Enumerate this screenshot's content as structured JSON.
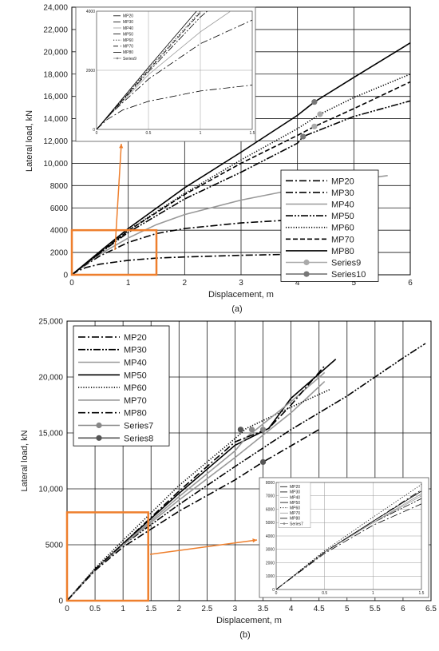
{
  "chart_data": [
    {
      "type": "line",
      "caption": "(a)",
      "xlabel": "Displacement, m",
      "ylabel": "Lateral load, kN",
      "xlim": [
        0,
        6
      ],
      "ylim": [
        0,
        24000
      ],
      "xticks": [
        "0",
        "1",
        "2",
        "3",
        "4",
        "5",
        "6"
      ],
      "yticks": [
        "0",
        "2000",
        "4000",
        "6000",
        "8000",
        "10,000",
        "12,000",
        "14,000",
        "16,000",
        "18,000",
        "20,000",
        "22,000",
        "24,000"
      ],
      "grid": true,
      "legend_position": "lower-right",
      "zoom_box": {
        "x": [
          0,
          1.5
        ],
        "y": [
          0,
          4000
        ]
      },
      "series": [
        {
          "name": "MP20",
          "color": "#000000",
          "dash": "dashdot",
          "points": [
            [
              0,
              0
            ],
            [
              0.1,
              330
            ],
            [
              0.25,
              650
            ],
            [
              0.5,
              950
            ],
            [
              1,
              1300
            ],
            [
              1.5,
              1500
            ],
            [
              2,
              1600
            ],
            [
              3,
              1750
            ],
            [
              4,
              1850
            ],
            [
              4.2,
              1880
            ]
          ]
        },
        {
          "name": "MP30",
          "color": "#000000",
          "dash": "dashdot",
          "points": [
            [
              0,
              0
            ],
            [
              0.1,
              400
            ],
            [
              0.25,
              900
            ],
            [
              0.5,
              1700
            ],
            [
              1,
              2900
            ],
            [
              1.5,
              3700
            ],
            [
              2,
              4150
            ],
            [
              3,
              4650
            ],
            [
              4,
              4950
            ],
            [
              4.5,
              5050
            ]
          ]
        },
        {
          "name": "MP40",
          "color": "#999999",
          "dash": "solid",
          "points": [
            [
              0,
              0
            ],
            [
              0.25,
              950
            ],
            [
              0.5,
              1850
            ],
            [
              1,
              3300
            ],
            [
              1.5,
              4500
            ],
            [
              2,
              5400
            ],
            [
              3,
              6700
            ],
            [
              4,
              7700
            ],
            [
              5,
              8500
            ],
            [
              5.6,
              8900
            ]
          ]
        },
        {
          "name": "MP50",
          "color": "#000000",
          "dash": "dashdotdot",
          "points": [
            [
              0,
              0
            ],
            [
              0.5,
              1950
            ],
            [
              1,
              3800
            ],
            [
              2,
              6800
            ],
            [
              3,
              9200
            ],
            [
              4,
              11800
            ],
            [
              4.1,
              12400
            ],
            [
              5,
              14200
            ],
            [
              6,
              15600
            ]
          ]
        },
        {
          "name": "MP60",
          "color": "#000000",
          "dash": "dotted",
          "points": [
            [
              0,
              0
            ],
            [
              0.5,
              2050
            ],
            [
              1,
              4000
            ],
            [
              2,
              7300
            ],
            [
              3,
              10300
            ],
            [
              4,
              13100
            ],
            [
              4.4,
              14400
            ],
            [
              5,
              15900
            ],
            [
              6,
              18000
            ]
          ]
        },
        {
          "name": "MP70",
          "color": "#000000",
          "dash": "dashed",
          "points": [
            [
              0,
              0
            ],
            [
              0.5,
              2000
            ],
            [
              1,
              3950
            ],
            [
              2,
              7200
            ],
            [
              3,
              10000
            ],
            [
              4,
              12500
            ],
            [
              4.3,
              13300
            ],
            [
              5,
              14900
            ],
            [
              6,
              17300
            ]
          ]
        },
        {
          "name": "MP80",
          "color": "#000000",
          "dash": "solid",
          "points": [
            [
              0,
              0
            ],
            [
              0.5,
              2100
            ],
            [
              1,
              4150
            ],
            [
              2,
              7800
            ],
            [
              3,
              11000
            ],
            [
              4,
              14300
            ],
            [
              4.3,
              15500
            ],
            [
              5,
              17700
            ],
            [
              6,
              20800
            ]
          ]
        }
      ],
      "markers": [
        {
          "name": "Series9",
          "color": "#aaaaaa",
          "points": [
            [
              4.3,
              13300
            ],
            [
              4.4,
              14400
            ]
          ]
        },
        {
          "name": "Series10",
          "color": "#777777",
          "points": [
            [
              4.1,
              12400
            ],
            [
              4.3,
              15500
            ]
          ]
        }
      ],
      "inset": {
        "xlim": [
          0,
          1.5
        ],
        "ylim": [
          0,
          4000
        ],
        "xticks": [
          "0",
          "0.5",
          "1",
          "1.5"
        ],
        "yticks": [
          "0",
          "2000",
          "4000"
        ],
        "legend": [
          "MP20",
          "MP30",
          "MP40",
          "MP50",
          "MP60",
          "MP70",
          "MP80",
          "Series9"
        ]
      }
    },
    {
      "type": "line",
      "caption": "(b)",
      "xlabel": "Displacement, m",
      "ylabel": "Lateral load, kN",
      "xlim": [
        0,
        6.5
      ],
      "ylim": [
        0,
        25000
      ],
      "xticks": [
        "0",
        "0.5",
        "1",
        "1.5",
        "2",
        "2.5",
        "3",
        "3.5",
        "4",
        "4.5",
        "5",
        "5.5",
        "6",
        "6.5"
      ],
      "yticks": [
        "0",
        "5000",
        "10,000",
        "15,000",
        "20,000",
        "25,000"
      ],
      "grid": true,
      "legend_position": "top-left",
      "zoom_box": {
        "x": [
          0,
          1.45
        ],
        "y": [
          0,
          7900
        ]
      },
      "series": [
        {
          "name": "MP20",
          "color": "#000000",
          "dash": "dashdot",
          "points": [
            [
              0,
              0
            ],
            [
              0.5,
              2700
            ],
            [
              1,
              4800
            ],
            [
              2,
              8000
            ],
            [
              3,
              10800
            ],
            [
              3.5,
              12400
            ],
            [
              4.5,
              15300
            ]
          ]
        },
        {
          "name": "MP30",
          "color": "#000000",
          "dash": "dashdotdot",
          "points": [
            [
              0,
              0
            ],
            [
              0.5,
              2800
            ],
            [
              1,
              5000
            ],
            [
              2,
              8600
            ],
            [
              3,
              12000
            ],
            [
              4,
              15300
            ],
            [
              5,
              18300
            ],
            [
              6,
              21700
            ],
            [
              6.4,
              23000
            ]
          ]
        },
        {
          "name": "MP40",
          "color": "#999999",
          "dash": "solid",
          "points": [
            [
              0,
              0
            ],
            [
              0.5,
              2800
            ],
            [
              1,
              5000
            ],
            [
              2,
              9000
            ],
            [
              3,
              12800
            ],
            [
              3.5,
              14800
            ],
            [
              4,
              16800
            ],
            [
              4.6,
              19600
            ]
          ]
        },
        {
          "name": "MP50",
          "color": "#000000",
          "dash": "solid",
          "points": [
            [
              0,
              0
            ],
            [
              0.5,
              2800
            ],
            [
              1,
              5100
            ],
            [
              2,
              9600
            ],
            [
              3,
              13900
            ],
            [
              3.6,
              15400
            ],
            [
              4,
              18100
            ],
            [
              4.8,
              21600
            ]
          ]
        },
        {
          "name": "MP60",
          "color": "#000000",
          "dash": "dotted",
          "points": [
            [
              0,
              0
            ],
            [
              0.5,
              2900
            ],
            [
              1,
              5400
            ],
            [
              2,
              10300
            ],
            [
              3,
              14500
            ],
            [
              3.2,
              15400
            ],
            [
              4,
              17300
            ],
            [
              4.7,
              18900
            ]
          ]
        },
        {
          "name": "MP70",
          "color": "#999999",
          "dash": "solid",
          "points": [
            [
              0,
              0
            ],
            [
              0.5,
              2800
            ],
            [
              1,
              5000
            ],
            [
              2,
              9300
            ],
            [
              3,
              13400
            ],
            [
              3.2,
              14600
            ],
            [
              4,
              17800
            ],
            [
              4.6,
              20400
            ]
          ]
        },
        {
          "name": "MP80",
          "color": "#000000",
          "dash": "dashdot",
          "points": [
            [
              0,
              0
            ],
            [
              0.5,
              2800
            ],
            [
              1,
              5100
            ],
            [
              2,
              9800
            ],
            [
              3,
              14200
            ],
            [
              3.6,
              15400
            ],
            [
              4,
              17500
            ],
            [
              4.6,
              21000
            ]
          ]
        }
      ],
      "markers": [
        {
          "name": "Series7",
          "color": "#888888",
          "points": [
            [
              3.1,
              15300
            ],
            [
              3.3,
              15300
            ],
            [
              3.5,
              15300
            ]
          ]
        },
        {
          "name": "Series8",
          "color": "#555555",
          "points": [
            [
              3.1,
              15300
            ],
            [
              3.5,
              12400
            ]
          ]
        }
      ],
      "inset": {
        "xlim": [
          0,
          1.5
        ],
        "ylim": [
          0,
          8000
        ],
        "xticks": [
          "0",
          "0.5",
          "1",
          "1.5"
        ],
        "yticks": [
          "0",
          "1000",
          "2000",
          "3000",
          "4000",
          "5000",
          "6000",
          "7000",
          "8000"
        ],
        "legend": [
          "MP20",
          "MP30",
          "MP40",
          "MP50",
          "MP60",
          "MP70",
          "MP80",
          "Series7"
        ]
      }
    }
  ]
}
